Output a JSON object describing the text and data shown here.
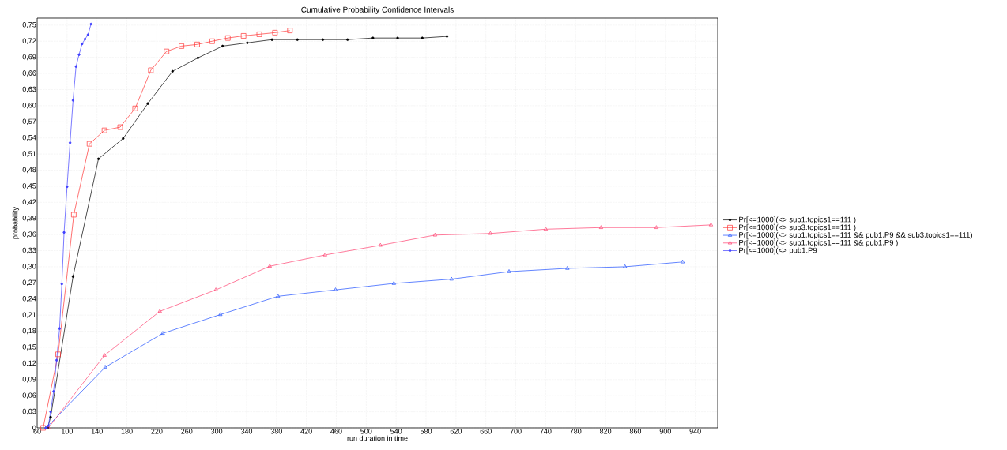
{
  "chart_data": {
    "type": "line",
    "title": "Cumulative Probability Confidence Intervals",
    "xlabel": "run duration in time",
    "ylabel": "probability",
    "xlim": [
      60,
      970
    ],
    "ylim": [
      0,
      0.763
    ],
    "xticks": [
      60,
      100,
      140,
      180,
      220,
      260,
      300,
      340,
      380,
      420,
      460,
      500,
      540,
      580,
      620,
      660,
      700,
      740,
      780,
      820,
      860,
      900,
      940
    ],
    "yticks": [
      0,
      {
        "value": 0.03,
        "label": "0,03"
      },
      {
        "value": 0.06,
        "label": "0,06"
      },
      {
        "value": 0.09,
        "label": "0,09"
      },
      {
        "value": 0.12,
        "label": "0,12"
      },
      {
        "value": 0.15,
        "label": "0,15"
      },
      {
        "value": 0.18,
        "label": "0,18"
      },
      {
        "value": 0.21,
        "label": "0,21"
      },
      {
        "value": 0.24,
        "label": "0,24"
      },
      {
        "value": 0.27,
        "label": "0,27"
      },
      {
        "value": 0.3,
        "label": "0,30"
      },
      {
        "value": 0.33,
        "label": "0,33"
      },
      {
        "value": 0.36,
        "label": "0,36"
      },
      {
        "value": 0.39,
        "label": "0,39"
      },
      {
        "value": 0.42,
        "label": "0,42"
      },
      {
        "value": 0.45,
        "label": "0,45"
      },
      {
        "value": 0.48,
        "label": "0,48"
      },
      {
        "value": 0.51,
        "label": "0,51"
      },
      {
        "value": 0.54,
        "label": "0,54"
      },
      {
        "value": 0.57,
        "label": "0,57"
      },
      {
        "value": 0.6,
        "label": "0,60"
      },
      {
        "value": 0.63,
        "label": "0,63"
      },
      {
        "value": 0.66,
        "label": "0,66"
      },
      {
        "value": 0.69,
        "label": "0,69"
      },
      {
        "value": 0.72,
        "label": "0,72"
      },
      {
        "value": 0.75,
        "label": "0,75"
      }
    ],
    "grid": true,
    "legend": "right",
    "line_style": "solid",
    "series": [
      {
        "name": "Pr[<=1000](<>  sub1.topics1==111 )",
        "color": "#000000",
        "marker": "circle",
        "x": [
          74,
          78,
          108,
          142,
          175,
          208,
          241,
          275,
          308,
          341,
          374,
          408,
          442,
          475,
          509,
          542,
          575,
          608
        ],
        "values": [
          0,
          0.02,
          0.282,
          0.501,
          0.539,
          0.604,
          0.664,
          0.689,
          0.711,
          0.717,
          0.723,
          0.723,
          0.723,
          0.723,
          0.726,
          0.726,
          0.726,
          0.729
        ]
      },
      {
        "name": "Pr[<=1000](<>  sub3.topics1==111 )",
        "color": "#ff3333",
        "marker": "square",
        "x": [
          68,
          88,
          109,
          130,
          150,
          171,
          191,
          212,
          233,
          253,
          274,
          294,
          315,
          336,
          357,
          378,
          398
        ],
        "values": [
          0,
          0.137,
          0.397,
          0.529,
          0.554,
          0.56,
          0.595,
          0.666,
          0.701,
          0.711,
          0.714,
          0.72,
          0.726,
          0.73,
          0.733,
          0.736,
          0.74
        ]
      },
      {
        "name": "Pr[<=1000](<> sub1.topics1==111 && pub1.P9 && sub3.topics1==111)",
        "color": "#2050ff",
        "marker": "triangle",
        "x": [
          72,
          151,
          228,
          305,
          382,
          459,
          537,
          614,
          691,
          769,
          846,
          923
        ],
        "values": [
          0,
          0.113,
          0.176,
          0.211,
          0.245,
          0.257,
          0.269,
          0.277,
          0.291,
          0.297,
          0.3,
          0.309
        ]
      },
      {
        "name": "Pr[<=1000](<> sub1.topics1==111 && pub1.P9 )",
        "color": "#ff4070",
        "marker": "triangle",
        "x": [
          75,
          150,
          224,
          299,
          371,
          445,
          519,
          592,
          666,
          740,
          814,
          888,
          961
        ],
        "values": [
          0,
          0.135,
          0.217,
          0.257,
          0.301,
          0.322,
          0.34,
          0.359,
          0.362,
          0.37,
          0.373,
          0.373,
          0.378
        ]
      },
      {
        "name": "Pr[<=1000](<> pub1.P9",
        "color": "#4040ff",
        "marker": "circle",
        "x": [
          72,
          75,
          78,
          82,
          86,
          90,
          93,
          96,
          100,
          104,
          108,
          112,
          116,
          120,
          124,
          128,
          132
        ],
        "values": [
          0,
          0.004,
          0.03,
          0.068,
          0.126,
          0.185,
          0.268,
          0.364,
          0.449,
          0.531,
          0.61,
          0.673,
          0.695,
          0.715,
          0.724,
          0.732,
          0.752
        ]
      }
    ]
  }
}
